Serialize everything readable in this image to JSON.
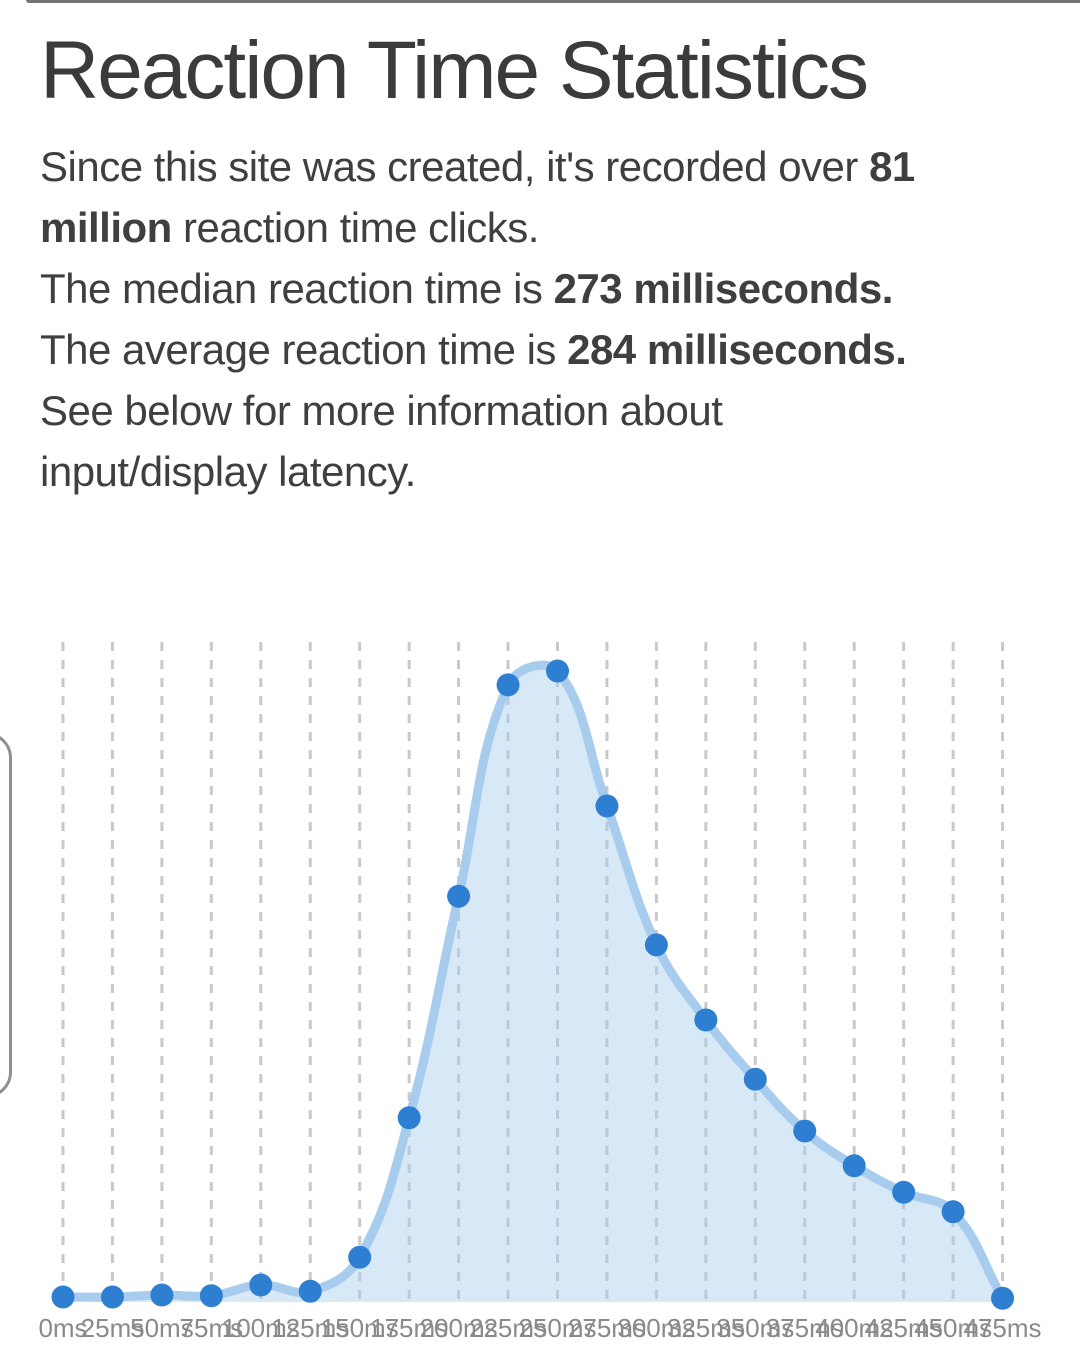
{
  "intro": {
    "title": "Reaction Time Statistics",
    "lines": [
      [
        {
          "t": "Since this site was created, it's recorded over ",
          "b": false
        },
        {
          "t": "81",
          "b": true
        }
      ],
      [
        {
          "t": "million",
          "b": true
        },
        {
          "t": " reaction time clicks.",
          "b": false
        }
      ],
      [
        {
          "t": "The median reaction time is ",
          "b": false
        },
        {
          "t": "273 milliseconds.",
          "b": true
        }
      ],
      [
        {
          "t": "The average reaction time is ",
          "b": false
        },
        {
          "t": "284 milliseconds.",
          "b": true
        }
      ],
      [
        {
          "t": "See below for more information about",
          "b": false
        }
      ],
      [
        {
          "t": "input/display latency.",
          "b": false
        }
      ]
    ]
  },
  "stats": {
    "total_clicks": "81 million",
    "median_ms": 273,
    "average_ms": 284
  },
  "chart_data": {
    "type": "area",
    "title": "",
    "xlabel": "",
    "ylabel": "",
    "legend_position": "none",
    "grid": "vertical-dashed",
    "categories": [
      "0ms",
      "25ms",
      "50ms",
      "75ms",
      "100ms",
      "125ms",
      "150ms",
      "175ms",
      "200ms",
      "225ms",
      "250ms",
      "275ms",
      "300ms",
      "325ms",
      "350ms",
      "375ms",
      "400ms",
      "425ms",
      "450ms",
      "475ms"
    ],
    "values": [
      0.8,
      0.8,
      1.1,
      1.0,
      2.7,
      1.7,
      7.1,
      29.2,
      64.3,
      97.8,
      100,
      78.6,
      56.6,
      44.7,
      35.3,
      27.1,
      21.6,
      17.4,
      14.3,
      0.6
    ],
    "value_units": "percent of peak bucket (no y-axis labels shown)",
    "ylim": [
      0,
      106
    ],
    "colors": {
      "point": "#2e7fd1",
      "line": "#a7cced",
      "area_fill": "rgba(167,204,238,0.45)",
      "gridline": "#c7c9cc",
      "axis_label": "#8a8a8a"
    }
  }
}
